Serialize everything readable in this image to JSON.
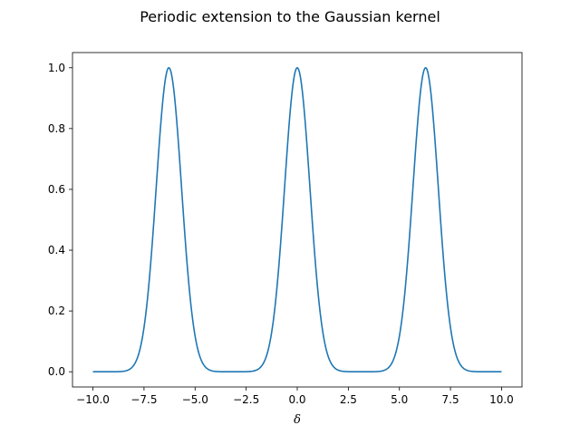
{
  "chart_data": {
    "type": "line",
    "title": "Periodic extension to the Gaussian kernel",
    "xlabel": "δ",
    "ylabel": "",
    "xlim": [
      -11.0,
      11.0
    ],
    "ylim": [
      -0.05,
      1.05
    ],
    "xticks": [
      -10.0,
      -7.5,
      -5.0,
      -2.5,
      0.0,
      2.5,
      5.0,
      7.5,
      10.0
    ],
    "xtick_labels": [
      "−10.0",
      "−7.5",
      "−5.0",
      "−2.5",
      "0.0",
      "2.5",
      "5.0",
      "7.5",
      "10.0"
    ],
    "yticks": [
      0.0,
      0.2,
      0.4,
      0.6,
      0.8,
      1.0
    ],
    "ytick_labels": [
      "0.0",
      "0.2",
      "0.4",
      "0.6",
      "0.8",
      "1.0"
    ],
    "grid": false,
    "legend": null,
    "series": [
      {
        "color": "#1f77b4",
        "description_points": {
          "x": [
            -10.0,
            -9.0,
            -8.5,
            -8.0,
            -7.5,
            -7.0,
            -6.5,
            -6.28,
            -6.0,
            -5.5,
            -5.0,
            -4.5,
            -4.0,
            -3.5,
            -3.14,
            -3.0,
            -2.5,
            -2.0,
            -1.5,
            -1.0,
            -0.5,
            0.0,
            0.5,
            1.0,
            1.5,
            2.0,
            2.5,
            3.0,
            3.14,
            3.5,
            4.0,
            4.5,
            5.0,
            5.5,
            6.0,
            6.28,
            6.5,
            7.0,
            7.5,
            8.0,
            8.5,
            9.0,
            10.0
          ],
          "y": [
            0.0,
            0.0,
            0.01,
            0.05,
            0.21,
            0.55,
            0.93,
            1.0,
            0.93,
            0.56,
            0.21,
            0.05,
            0.01,
            0.0,
            0.0,
            0.0,
            0.01,
            0.05,
            0.21,
            0.55,
            0.88,
            1.0,
            0.88,
            0.55,
            0.21,
            0.05,
            0.01,
            0.0,
            0.0,
            0.0,
            0.01,
            0.05,
            0.21,
            0.56,
            0.93,
            1.0,
            0.93,
            0.55,
            0.21,
            0.05,
            0.01,
            0.0,
            0.0
          ]
        }
      }
    ]
  }
}
